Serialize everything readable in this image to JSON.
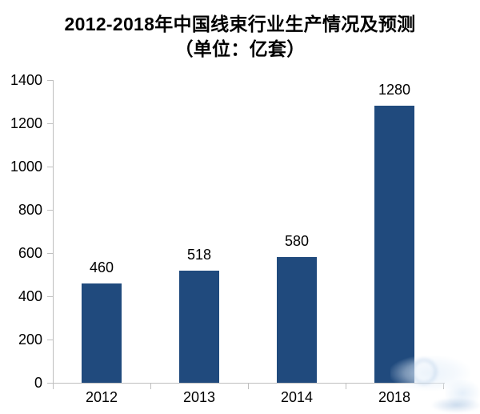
{
  "title": {
    "line1": "2012-2018年中国线束行业生产情况及预测",
    "line2": "（单位：亿套）"
  },
  "colors": {
    "bar": "#204A7D",
    "axis": "#BFBFBF",
    "text": "#000000",
    "background": "#FFFFFF"
  },
  "chart_data": {
    "type": "bar",
    "categories": [
      "2012",
      "2013",
      "2014",
      "2018"
    ],
    "values": [
      460,
      518,
      580,
      1280
    ],
    "data_labels": [
      "460",
      "518",
      "580",
      "1280"
    ],
    "title": "2012-2018年中国线束行业生产情况及预测（单位：亿套）",
    "xlabel": "",
    "ylabel": "",
    "ylim": [
      0,
      1400
    ],
    "yticks": [
      0,
      200,
      400,
      600,
      800,
      1000,
      1200,
      1400
    ],
    "grid": false,
    "legend": false,
    "bar_color": "#204A7D",
    "data_labels_shown": true
  }
}
